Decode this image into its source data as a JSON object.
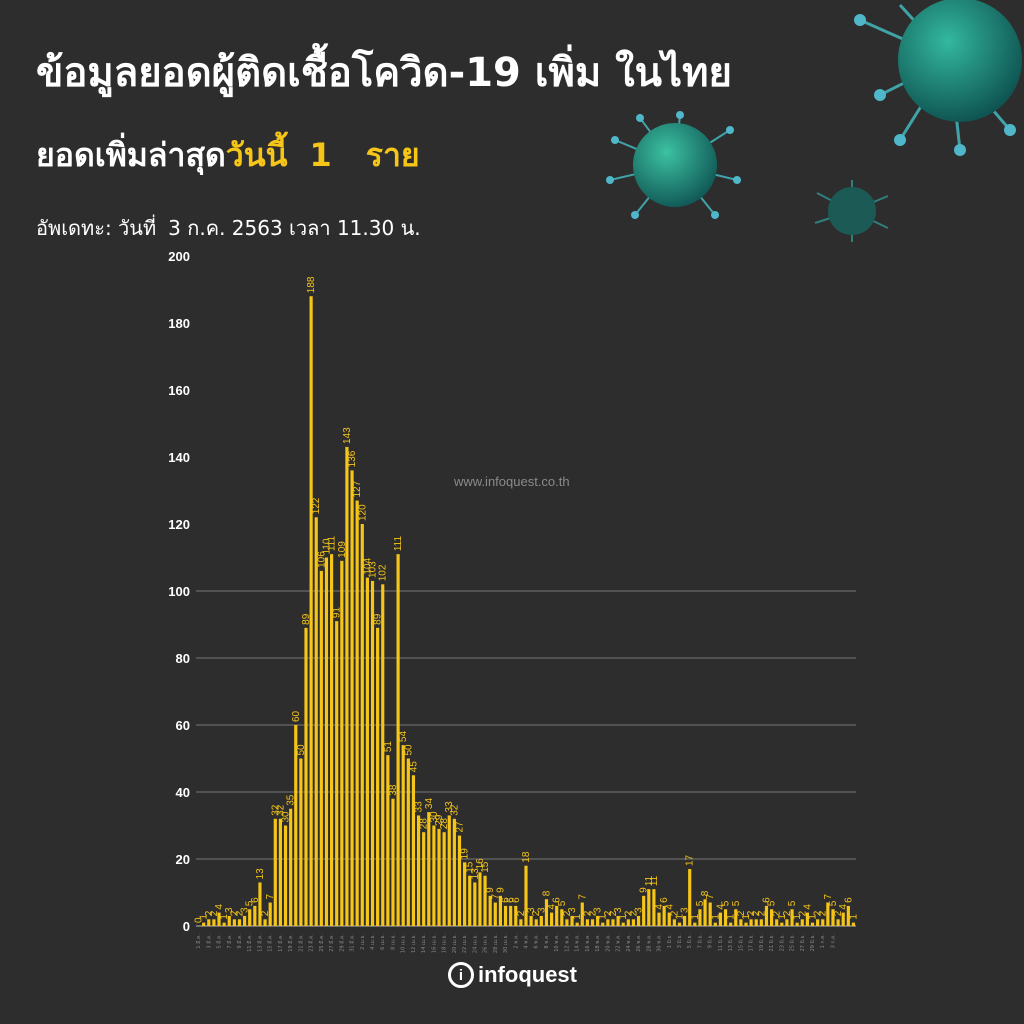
{
  "header": {
    "title": "ข้อมูลยอดผู้ติดเชื้อโควิด-19 เพิ่ม ในไทย",
    "subtitle_prefix": "ยอดเพิ่มล่าสุด",
    "subtitle_highlight": "วันนี้",
    "subtitle_value": "1",
    "subtitle_unit": "ราย",
    "update_label": "อัพเดทะ: วันที่",
    "update_text": "3 ก.ค. 2563 เวลา 11.30 น."
  },
  "watermark": "www.infoquest.co.th",
  "logo": {
    "mark": "i",
    "text": "infoquest"
  },
  "colors": {
    "background": "#2e2d2d",
    "bar": "#f5c518",
    "grid": "#777777"
  },
  "icons": [
    "virus-icon"
  ],
  "chart_data": {
    "type": "bar",
    "title": "",
    "xlabel": "",
    "ylabel": "",
    "ylim": [
      0,
      200
    ],
    "yticks": [
      0,
      20,
      40,
      60,
      80,
      100,
      120,
      140,
      160,
      180,
      200
    ],
    "grid": true,
    "x_label_dates": [
      "1 มี.ค.",
      "3 มี.ค.",
      "5 มี.ค.",
      "7 มี.ค.",
      "9 มี.ค.",
      "11 มี.ค.",
      "13 มี.ค.",
      "15 มี.ค.",
      "17 มี.ค.",
      "19 มี.ค.",
      "21 มี.ค.",
      "23 มี.ค.",
      "25 มี.ค.",
      "27 มี.ค.",
      "29 มี.ค.",
      "31 มี.ค.",
      "2 เม.ย.",
      "4 เม.ย.",
      "6 เม.ย.",
      "8 เม.ย.",
      "10 เม.ย.",
      "12 เม.ย.",
      "14 เม.ย.",
      "16 เม.ย.",
      "18 เม.ย.",
      "20 เม.ย.",
      "22 เม.ย.",
      "24 เม.ย.",
      "26 เม.ย.",
      "28 เม.ย.",
      "30 เม.ย.",
      "2 พ.ค.",
      "4 พ.ค.",
      "6 พ.ค.",
      "8 พ.ค.",
      "10 พ.ค.",
      "12 พ.ค.",
      "14 พ.ค.",
      "16 พ.ค.",
      "18 พ.ค.",
      "20 พ.ค.",
      "22 พ.ค.",
      "24 พ.ค.",
      "26 พ.ค.",
      "28 พ.ค.",
      "30 พ.ค.",
      "1 มิ.ย.",
      "3 มิ.ย.",
      "5 มิ.ย.",
      "7 มิ.ย.",
      "9 มิ.ย.",
      "11 มิ.ย.",
      "13 มิ.ย.",
      "15 มิ.ย.",
      "17 มิ.ย.",
      "19 มิ.ย.",
      "21 มิ.ย.",
      "23 มิ.ย.",
      "25 มิ.ย.",
      "27 มิ.ย.",
      "29 มิ.ย.",
      "1 ก.ค.",
      "3 ก.ค."
    ],
    "values": [
      0,
      1,
      2,
      2,
      4,
      1,
      3,
      2,
      2,
      3,
      5,
      6,
      13,
      2,
      7,
      32,
      32,
      30,
      35,
      60,
      50,
      89,
      188,
      122,
      106,
      110,
      111,
      91,
      109,
      143,
      136,
      127,
      120,
      104,
      103,
      89,
      102,
      51,
      38,
      111,
      54,
      50,
      45,
      33,
      28,
      34,
      30,
      29,
      28,
      33,
      32,
      27,
      19,
      15,
      13,
      16,
      15,
      9,
      7,
      9,
      6,
      6,
      6,
      2,
      18,
      3,
      2,
      3,
      8,
      4,
      6,
      5,
      2,
      3,
      1,
      7,
      2,
      2,
      3,
      1,
      2,
      2,
      3,
      1,
      2,
      2,
      3,
      9,
      11,
      11,
      4,
      6,
      4,
      2,
      1,
      3,
      17,
      1,
      5,
      8,
      7,
      1,
      4,
      5,
      1,
      5,
      2,
      1,
      2,
      2,
      2,
      6,
      5,
      2,
      1,
      2,
      5,
      1,
      2,
      4,
      1,
      2,
      2,
      7,
      5,
      2,
      4,
      6,
      1
    ]
  }
}
